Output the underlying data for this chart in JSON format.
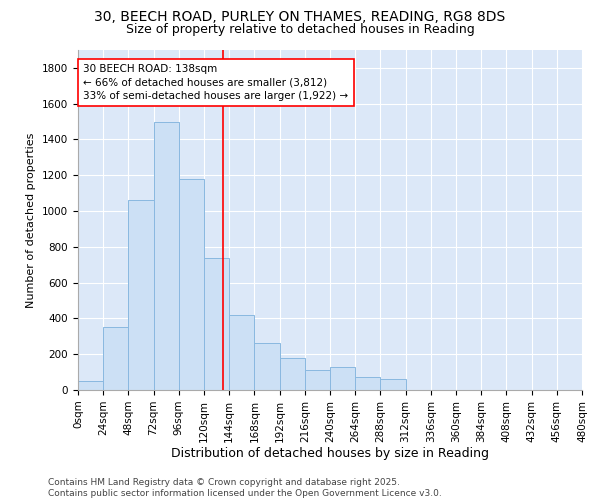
{
  "title1": "30, BEECH ROAD, PURLEY ON THAMES, READING, RG8 8DS",
  "title2": "Size of property relative to detached houses in Reading",
  "xlabel": "Distribution of detached houses by size in Reading",
  "ylabel": "Number of detached properties",
  "bins": [
    0,
    24,
    48,
    72,
    96,
    120,
    144,
    168,
    192,
    216,
    240,
    264,
    288,
    312,
    336,
    360,
    384,
    408,
    432,
    456,
    480
  ],
  "counts": [
    50,
    350,
    1060,
    1500,
    1180,
    740,
    420,
    260,
    180,
    110,
    130,
    75,
    60,
    0,
    0,
    0,
    0,
    0,
    0,
    0
  ],
  "bar_color": "#cce0f5",
  "bar_edge_color": "#89b8e0",
  "vline_x": 138,
  "vline_color": "red",
  "annotation_text": "30 BEECH ROAD: 138sqm\n← 66% of detached houses are smaller (3,812)\n33% of semi-detached houses are larger (1,922) →",
  "annotation_box_color": "white",
  "annotation_box_edge": "red",
  "ylim": [
    0,
    1900
  ],
  "yticks": [
    0,
    200,
    400,
    600,
    800,
    1000,
    1200,
    1400,
    1600,
    1800
  ],
  "xlim": [
    0,
    480
  ],
  "background_color": "#dce8f8",
  "grid_color": "white",
  "footer_text": "Contains HM Land Registry data © Crown copyright and database right 2025.\nContains public sector information licensed under the Open Government Licence v3.0.",
  "title1_fontsize": 10,
  "title2_fontsize": 9,
  "xlabel_fontsize": 9,
  "ylabel_fontsize": 8,
  "tick_fontsize": 7.5,
  "annotation_fontsize": 7.5,
  "footer_fontsize": 6.5
}
